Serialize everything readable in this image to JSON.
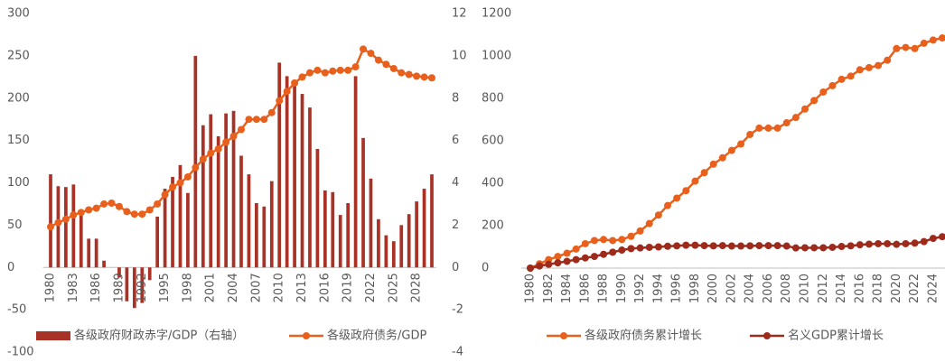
{
  "chart_data": [
    {
      "type": "bar_line",
      "categories": [
        "1980",
        null,
        null,
        "1983",
        null,
        null,
        "1986",
        null,
        null,
        "1989",
        null,
        null,
        "1992",
        null,
        null,
        "1995",
        null,
        null,
        "1998",
        null,
        null,
        "2001",
        null,
        null,
        "2004",
        null,
        null,
        "2007",
        null,
        null,
        "2010",
        null,
        null,
        "2013",
        null,
        null,
        "2016",
        null,
        null,
        "2019",
        null,
        null,
        "2022",
        null,
        null,
        "2025",
        null,
        null,
        "2028",
        null,
        null
      ],
      "series": [
        {
          "name": "各级政府财政赤字/GDP（右轴）",
          "kind": "bar",
          "axis": "y2",
          "color": "#a93226",
          "values": [
            4.4,
            3.84,
            3.8,
            3.92,
            2.6,
            1.36,
            1.36,
            0.32,
            0,
            -0.48,
            -1.6,
            -1.92,
            -1.68,
            -0.6,
            2.4,
            3.72,
            4.28,
            4.84,
            3.52,
            10,
            6.72,
            7.24,
            6.2,
            7.28,
            7.4,
            5.28,
            4.4,
            3.04,
            2.88,
            4.08,
            9.68,
            9.04,
            8.8,
            8.2,
            7.56,
            5.6,
            3.64,
            3.56,
            2.48,
            3.04,
            9.04,
            6.12,
            4.2,
            2.28,
            1.52,
            1.24,
            2,
            2.52,
            3.12,
            3.72,
            4.4
          ]
        },
        {
          "name": "各级政府债务/GDP",
          "kind": "line",
          "axis": "y",
          "color": "#e8601c",
          "values": [
            48,
            53,
            57,
            62,
            65,
            68,
            70,
            75,
            76,
            72,
            66,
            63,
            63,
            68,
            75,
            86,
            95,
            100,
            107,
            118,
            128,
            135,
            140,
            148,
            155,
            163,
            175,
            175,
            175,
            183,
            197,
            208,
            218,
            225,
            230,
            233,
            230,
            232,
            233,
            233,
            237,
            258,
            253,
            245,
            240,
            235,
            230,
            228,
            226,
            225,
            224
          ]
        }
      ],
      "ylim": [
        -100,
        300
      ],
      "yticks": [
        -100,
        -50,
        0,
        50,
        100,
        150,
        200,
        250,
        300
      ],
      "y2lim": [
        -4,
        12
      ],
      "y2ticks": [
        -4,
        -2,
        0,
        2,
        4,
        6,
        8,
        10,
        12
      ]
    },
    {
      "type": "line",
      "categories": [
        "1980",
        null,
        "1982",
        null,
        "1984",
        null,
        "1986",
        null,
        "1988",
        null,
        "1990",
        null,
        "1992",
        null,
        "1994",
        null,
        "1996",
        null,
        "1998",
        null,
        "2000",
        null,
        "2002",
        null,
        "2004",
        null,
        "2006",
        null,
        "2008",
        null,
        "2010",
        null,
        "2012",
        null,
        "2014",
        null,
        "2016",
        null,
        "2018",
        null,
        "2020",
        null,
        "2022",
        null,
        "2024",
        null
      ],
      "series": [
        {
          "name": "各级政府债务累计增长",
          "color": "#e8601c",
          "values": [
            0,
            20,
            40,
            55,
            70,
            90,
            115,
            130,
            135,
            130,
            135,
            150,
            175,
            210,
            250,
            295,
            330,
            365,
            410,
            450,
            490,
            520,
            555,
            585,
            630,
            660,
            660,
            660,
            685,
            710,
            750,
            790,
            830,
            860,
            890,
            905,
            935,
            945,
            955,
            980,
            1035,
            1040,
            1035,
            1060,
            1075,
            1085
          ]
        },
        {
          "name": "名义GDP累计增长",
          "color": "#9e2a1c",
          "values": [
            0,
            10,
            18,
            25,
            32,
            40,
            48,
            55,
            65,
            75,
            85,
            92,
            95,
            98,
            100,
            103,
            105,
            108,
            108,
            106,
            105,
            106,
            104,
            104,
            105,
            106,
            106,
            106,
            104,
            95,
            96,
            96,
            96,
            98,
            102,
            105,
            110,
            113,
            115,
            115,
            112,
            115,
            118,
            125,
            140,
            148
          ]
        }
      ],
      "ylim": [
        0,
        1200
      ],
      "yticks": [
        0,
        200,
        400,
        600,
        800,
        1000,
        1200
      ]
    }
  ]
}
